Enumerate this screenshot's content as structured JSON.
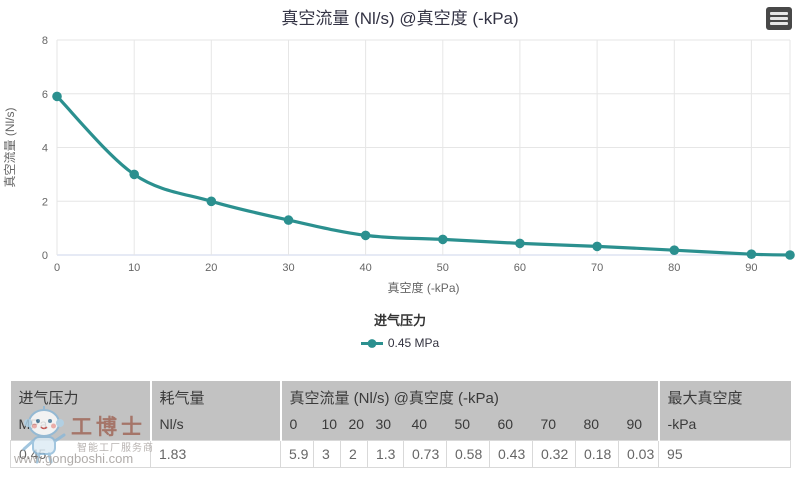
{
  "chart": {
    "title": "真空流量 (Nl/s) @真空度 (-kPa)",
    "colors": {
      "series": "#2b908f",
      "grid": "#e6e6e6",
      "axis_line": "#ccd6eb",
      "tick_label": "#666666",
      "title_text": "#333344",
      "menu_bg": "#484848",
      "menu_stripe": "#e6e6e6",
      "table_header_bg": "#c2c2c2"
    },
    "icons": {
      "export_menu": "hamburger-menu"
    },
    "legend": {
      "title": "进气压力",
      "items": [
        {
          "label": "0.45 MPa",
          "color": "#2b908f"
        }
      ]
    }
  },
  "chart_data": {
    "type": "line",
    "title": "真空流量 (Nl/s) @真空度 (-kPa)",
    "xlabel": "真空度 (-kPa)",
    "ylabel": "真空流量 (Nl/s)",
    "xlim": [
      0,
      95
    ],
    "ylim": [
      0,
      8
    ],
    "x_ticks": [
      0,
      10,
      20,
      30,
      40,
      50,
      60,
      70,
      80,
      90
    ],
    "y_ticks": [
      0,
      2,
      4,
      6,
      8
    ],
    "grid": true,
    "legend_position": "bottom",
    "legend_title": "进气压力",
    "series": [
      {
        "name": "0.45 MPa",
        "color": "#2b908f",
        "x": [
          0,
          10,
          20,
          30,
          40,
          50,
          60,
          70,
          80,
          90,
          95
        ],
        "y": [
          5.9,
          3,
          2,
          1.3,
          0.73,
          0.58,
          0.43,
          0.32,
          0.18,
          0.03,
          0
        ]
      }
    ]
  },
  "table": {
    "group_headers": [
      "进气压力",
      "耗气量",
      "真空流量 (Nl/s) @真空度 (-kPa)",
      "最大真空度"
    ],
    "unit_row": [
      "MPa",
      "Nl/s",
      "0",
      "10",
      "20",
      "30",
      "40",
      "50",
      "60",
      "70",
      "80",
      "90",
      "-kPa"
    ],
    "data_row": [
      "0.45",
      "1.83",
      "5.9",
      "3",
      "2",
      "1.3",
      "0.73",
      "0.58",
      "0.43",
      "0.32",
      "0.18",
      "0.03",
      "95"
    ]
  },
  "watermark": {
    "brand": "工博士",
    "tagline": "智能工厂服务商",
    "url": "www.gongboshi.com",
    "mascot": "robot-mascot"
  }
}
